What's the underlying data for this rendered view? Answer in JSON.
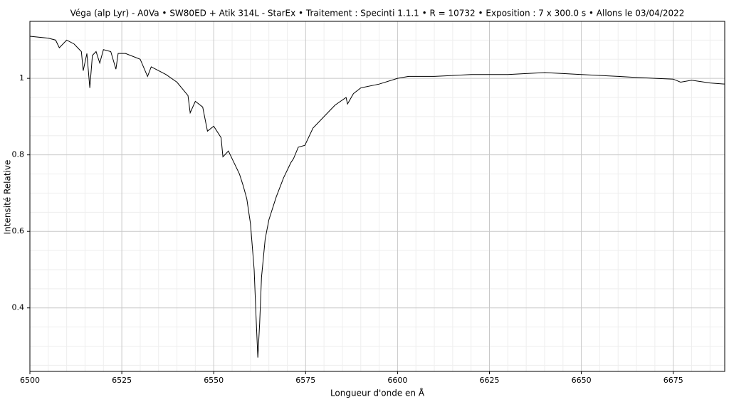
{
  "chart_data": {
    "type": "line",
    "title": "Véga (alp Lyr) - A0Va • SW80ED + Atik 314L - StarEx • Traitement : Specinti 1.1.1 • R = 10732 • Exposition : 7 x 300.0 s • Allons le 03/04/2022",
    "xlabel": "Longueur d'onde en Å",
    "ylabel": "Intensité Relative",
    "xlim": [
      6500,
      6689
    ],
    "ylim": [
      0.234,
      1.149
    ],
    "xticks": [
      6500,
      6525,
      6550,
      6575,
      6600,
      6625,
      6650,
      6675
    ],
    "yticks": [
      0.4,
      0.6,
      0.8,
      1.0
    ],
    "xminorticks": [
      6505,
      6510,
      6515,
      6520,
      6530,
      6535,
      6540,
      6545,
      6555,
      6560,
      6565,
      6570,
      6580,
      6585,
      6590,
      6595,
      6605,
      6610,
      6615,
      6620,
      6630,
      6635,
      6640,
      6645,
      6655,
      6660,
      6665,
      6670,
      6680,
      6685
    ],
    "yminorticks": [
      0.25,
      0.3,
      0.35,
      0.45,
      0.5,
      0.55,
      0.65,
      0.7,
      0.75,
      0.85,
      0.9,
      0.95,
      1.05,
      1.1
    ],
    "grid": true,
    "series": [
      {
        "color": "#000000",
        "x": [
          6500,
          6505,
          6507,
          6508,
          6510,
          6512,
          6513,
          6514,
          6514.5,
          6515.5,
          6516.3,
          6517,
          6518,
          6519,
          6520,
          6522,
          6523.4,
          6524,
          6526,
          6530,
          6532,
          6533,
          6535,
          6537,
          6540,
          6543,
          6543.6,
          6545,
          6547,
          6548.3,
          6550,
          6552,
          6552.5,
          6554,
          6555,
          6557,
          6558,
          6559,
          6560,
          6561,
          6561.5,
          6562,
          6562.5,
          6563,
          6564,
          6565,
          6567,
          6569,
          6571,
          6571.7,
          6573,
          6574.8,
          6577,
          6580,
          6583,
          6586,
          6586.4,
          6588,
          6590,
          6595,
          6600,
          6603,
          6610,
          6620,
          6630,
          6640,
          6650,
          6660,
          6670,
          6675,
          6677,
          6680,
          6685,
          6689
        ],
        "values": [
          1.11,
          1.105,
          1.1,
          1.08,
          1.1,
          1.09,
          1.08,
          1.07,
          1.02,
          1.065,
          0.975,
          1.06,
          1.07,
          1.04,
          1.075,
          1.07,
          1.024,
          1.065,
          1.065,
          1.05,
          1.005,
          1.03,
          1.02,
          1.01,
          0.99,
          0.955,
          0.91,
          0.94,
          0.925,
          0.862,
          0.875,
          0.845,
          0.795,
          0.81,
          0.79,
          0.75,
          0.72,
          0.685,
          0.62,
          0.5,
          0.38,
          0.27,
          0.36,
          0.48,
          0.58,
          0.63,
          0.69,
          0.74,
          0.78,
          0.79,
          0.82,
          0.825,
          0.87,
          0.9,
          0.93,
          0.95,
          0.933,
          0.96,
          0.975,
          0.985,
          1.0,
          1.005,
          1.005,
          1.01,
          1.01,
          1.015,
          1.01,
          1.005,
          1.0,
          0.998,
          0.99,
          0.995,
          0.988,
          0.985
        ]
      }
    ]
  }
}
